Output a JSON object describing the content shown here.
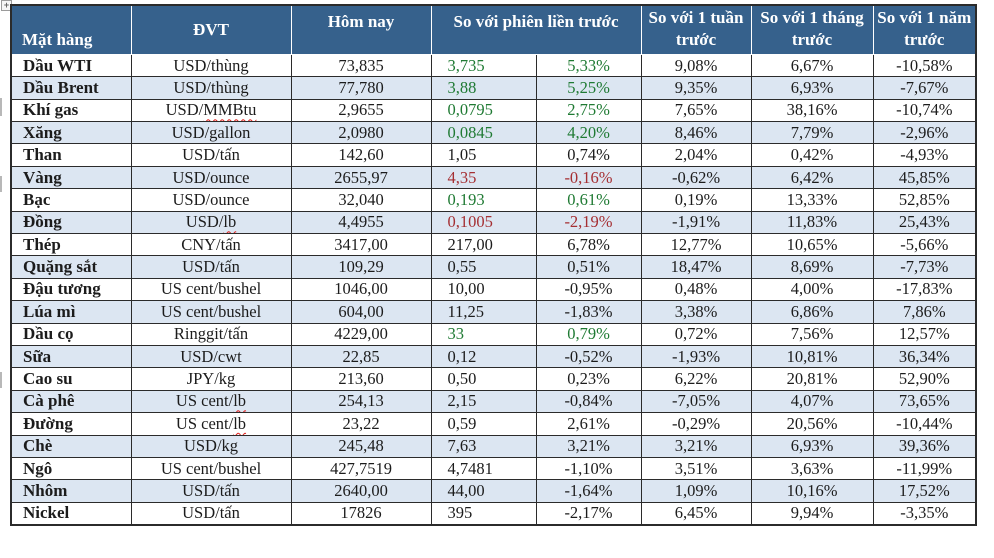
{
  "colors": {
    "header_bg": "#36618c",
    "header_text": "#ffffff",
    "stripe": "#dce6f2",
    "positive": "#1f7a33",
    "negative": "#a52f33",
    "text": "#1c1c1c",
    "squiggle": "#e0201c"
  },
  "move_handle_glyph": "+",
  "table": {
    "headers": {
      "commodity": "Mặt hàng",
      "unit": "ĐVT",
      "today": "Hôm nay",
      "vs_prev_session": "So với phiên liền trước",
      "vs_week": "So với 1 tuần trước",
      "vs_month": "So với 1 tháng trước",
      "vs_year": "So với 1 năm trước"
    },
    "rows": [
      {
        "name": "Dầu WTI",
        "unit": "USD/thùng",
        "squiggle": "",
        "today": "73,835",
        "change": "3,735",
        "change_pct": "5,33%",
        "week": "9,08%",
        "month": "6,67%",
        "year": "-10,58%",
        "change_color": "green"
      },
      {
        "name": "Dầu Brent",
        "unit": "USD/thùng",
        "squiggle": "",
        "today": "77,780",
        "change": "3,88",
        "change_pct": "5,25%",
        "week": "9,35%",
        "month": "6,93%",
        "year": "-7,67%",
        "change_color": "green"
      },
      {
        "name": "Khí gas",
        "unit": "USD/MMBtu",
        "squiggle": "MMBtu",
        "today": "2,9655",
        "change": "0,0795",
        "change_pct": "2,75%",
        "week": "7,65%",
        "month": "38,16%",
        "year": "-10,74%",
        "change_color": "green"
      },
      {
        "name": "Xăng",
        "unit": "USD/gallon",
        "squiggle": "",
        "today": "2,0980",
        "change": "0,0845",
        "change_pct": "4,20%",
        "week": "8,46%",
        "month": "7,79%",
        "year": "-2,96%",
        "change_color": "green"
      },
      {
        "name": "Than",
        "unit": "USD/tấn",
        "squiggle": "",
        "today": "142,60",
        "change": "1,05",
        "change_pct": "0,74%",
        "week": "2,04%",
        "month": "0,42%",
        "year": "-4,93%",
        "change_color": "plain"
      },
      {
        "name": "Vàng",
        "unit": "USD/ounce",
        "squiggle": "",
        "today": "2655,97",
        "change": "4,35",
        "change_pct": "-0,16%",
        "week": "-0,62%",
        "month": "6,42%",
        "year": "45,85%",
        "change_color": "red"
      },
      {
        "name": "Bạc",
        "unit": "USD/ounce",
        "squiggle": "",
        "today": "32,040",
        "change": "0,193",
        "change_pct": "0,61%",
        "week": "0,19%",
        "month": "13,33%",
        "year": "52,85%",
        "change_color": "green"
      },
      {
        "name": "Đồng",
        "unit": "USD/lb",
        "squiggle": "lb",
        "today": "4,4955",
        "change": "0,1005",
        "change_pct": "-2,19%",
        "week": "-1,91%",
        "month": "11,83%",
        "year": "25,43%",
        "change_color": "red"
      },
      {
        "name": "Thép",
        "unit": "CNY/tấn",
        "squiggle": "",
        "today": "3417,00",
        "change": "217,00",
        "change_pct": "6,78%",
        "week": "12,77%",
        "month": "10,65%",
        "year": "-5,66%",
        "change_color": "plain"
      },
      {
        "name": "Quặng sắt",
        "unit": "USD/tấn",
        "squiggle": "",
        "today": "109,29",
        "change": "0,55",
        "change_pct": "0,51%",
        "week": "18,47%",
        "month": "8,69%",
        "year": "-7,73%",
        "change_color": "plain"
      },
      {
        "name": "Đậu tương",
        "unit": "US cent/bushel",
        "squiggle": "",
        "today": "1046,00",
        "change": "10,00",
        "change_pct": "-0,95%",
        "week": "0,48%",
        "month": "4,00%",
        "year": "-17,83%",
        "change_color": "plain"
      },
      {
        "name": "Lúa mì",
        "unit": "US cent/bushel",
        "squiggle": "",
        "today": "604,00",
        "change": "11,25",
        "change_pct": "-1,83%",
        "week": "3,38%",
        "month": "6,86%",
        "year": "7,86%",
        "change_color": "plain"
      },
      {
        "name": "Dầu cọ",
        "unit": "Ringgit/tấn",
        "squiggle": "",
        "today": "4229,00",
        "change": "33",
        "change_pct": "0,79%",
        "week": "0,72%",
        "month": "7,56%",
        "year": "12,57%",
        "change_color": "green"
      },
      {
        "name": "Sữa",
        "unit": "USD/cwt",
        "squiggle": "",
        "today": "22,85",
        "change": "0,12",
        "change_pct": "-0,52%",
        "week": "-1,93%",
        "month": "10,81%",
        "year": "36,34%",
        "change_color": "plain"
      },
      {
        "name": "Cao su",
        "unit": "JPY/kg",
        "squiggle": "",
        "today": "213,60",
        "change": "0,50",
        "change_pct": "0,23%",
        "week": "6,22%",
        "month": "20,81%",
        "year": "52,90%",
        "change_color": "plain"
      },
      {
        "name": "Cà phê",
        "unit": "US cent/lb",
        "squiggle": "lb",
        "today": "254,13",
        "change": "2,15",
        "change_pct": "-0,84%",
        "week": "-7,05%",
        "month": "4,07%",
        "year": "73,65%",
        "change_color": "plain"
      },
      {
        "name": "Đường",
        "unit": "US cent/lb",
        "squiggle": "lb",
        "today": "23,22",
        "change": "0,59",
        "change_pct": "2,61%",
        "week": "-0,29%",
        "month": "20,56%",
        "year": "-10,44%",
        "change_color": "plain"
      },
      {
        "name": "Chè",
        "unit": "USD/kg",
        "squiggle": "",
        "today": "245,48",
        "change": "7,63",
        "change_pct": "3,21%",
        "week": "3,21%",
        "month": "6,93%",
        "year": "39,36%",
        "change_color": "plain"
      },
      {
        "name": "Ngô",
        "unit": "US cent/bushel",
        "squiggle": "",
        "today": "427,7519",
        "change": "4,7481",
        "change_pct": "-1,10%",
        "week": "3,51%",
        "month": "3,63%",
        "year": "-11,99%",
        "change_color": "plain"
      },
      {
        "name": "Nhôm",
        "unit": "USD/tấn",
        "squiggle": "",
        "today": "2640,00",
        "change": "44,00",
        "change_pct": "-1,64%",
        "week": "1,09%",
        "month": "10,16%",
        "year": "17,52%",
        "change_color": "plain"
      },
      {
        "name": "Nickel",
        "unit": "USD/tấn",
        "squiggle": "",
        "today": "17826",
        "change": "395",
        "change_pct": "-2,17%",
        "week": "6,45%",
        "month": "9,94%",
        "year": "-3,35%",
        "change_color": "plain"
      }
    ]
  }
}
